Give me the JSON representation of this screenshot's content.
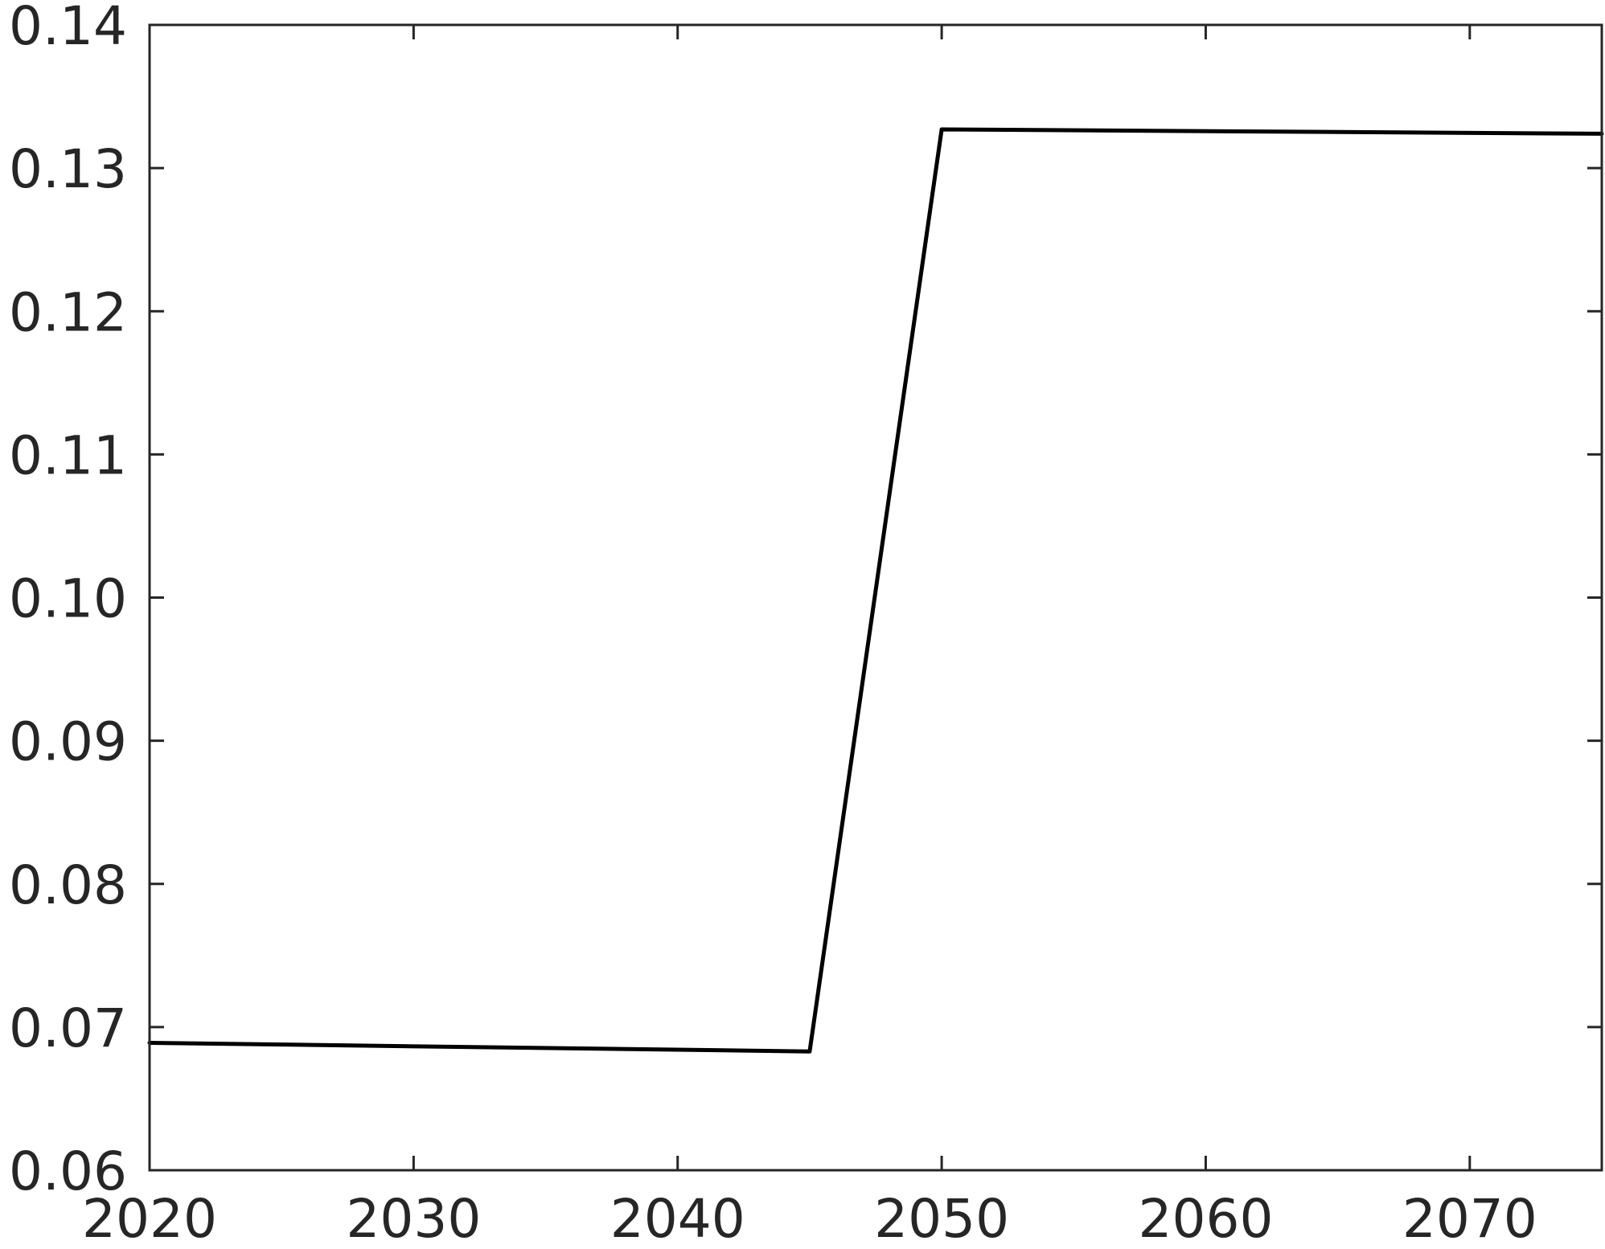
{
  "chart_data": {
    "type": "line",
    "title": "",
    "xlabel": "",
    "ylabel": "",
    "xlim": [
      2020,
      2075
    ],
    "ylim": [
      0.06,
      0.14
    ],
    "xticks": [
      2020,
      2030,
      2040,
      2050,
      2060,
      2070
    ],
    "xtick_labels": [
      "2020",
      "2030",
      "2040",
      "2050",
      "2060",
      "2070"
    ],
    "yticks": [
      0.06,
      0.07,
      0.08,
      0.09,
      0.1,
      0.11,
      0.12,
      0.13,
      0.14
    ],
    "ytick_labels": [
      "0.06",
      "0.07",
      "0.08",
      "0.09",
      "0.10",
      "0.11",
      "0.12",
      "0.13",
      "0.14"
    ],
    "grid": false,
    "legend": "none",
    "series": [
      {
        "color": "#000000",
        "x": [
          2020,
          2045,
          2050,
          2075
        ],
        "y": [
          0.0689,
          0.0683,
          0.1327,
          0.1324
        ]
      }
    ]
  }
}
